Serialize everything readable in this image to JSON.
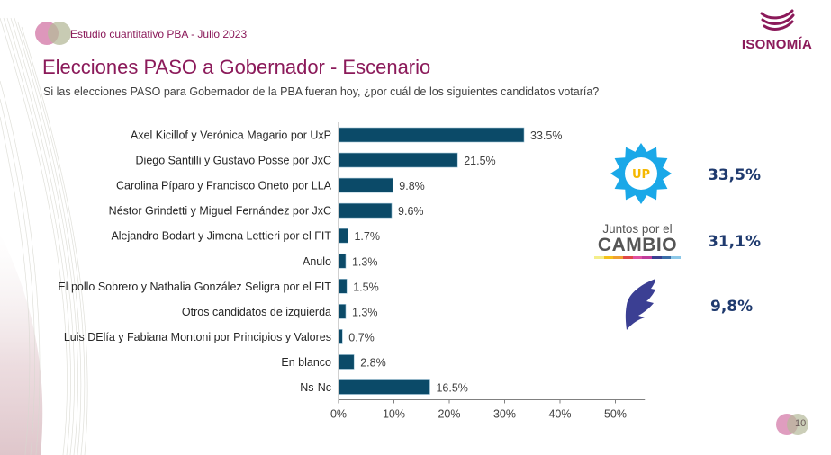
{
  "header": {
    "study": "Estudio cuantitativo PBA - Julio 2023",
    "brand": "ISONOMÍA",
    "title": "Elecciones PASO a Gobernador - Escenario",
    "question": "Si las elecciones PASO para Gobernador de la PBA fueran hoy, ¿por cuál de los siguientes candidatos votaría?"
  },
  "colors": {
    "brand": "#8b1a5a",
    "bar": "#0b4a68",
    "pct": "#1f3a6e",
    "up_star": "#1aa8e8",
    "up_text": "#f5b800",
    "lla": "#3b3f93"
  },
  "chart_data": {
    "type": "bar",
    "orientation": "horizontal",
    "categories": [
      "Axel Kicillof y Verónica Magario por UxP",
      "Diego Santilli y Gustavo Posse por JxC",
      "Carolina Píparo y Francisco Oneto por LLA",
      "Néstor Grindetti y Miguel Fernández por JxC",
      "Alejandro Bodart y Jimena Lettieri por el FIT",
      "Anulo",
      "El pollo Sobrero y Nathalia González Seligra por el FIT",
      "Otros candidatos de izquierda",
      "Luis DElía y Fabiana Montoni por Principios y Valores",
      "En blanco",
      "Ns-Nc"
    ],
    "values": [
      33.5,
      21.5,
      9.8,
      9.6,
      1.7,
      1.3,
      1.5,
      1.3,
      0.7,
      2.8,
      16.5
    ],
    "value_labels": [
      "33.5%",
      "21.5%",
      "9.8%",
      "9.6%",
      "1.7%",
      "1.3%",
      "1.5%",
      "1.3%",
      "0.7%",
      "2.8%",
      "16.5%"
    ],
    "xlim": [
      0,
      55
    ],
    "xticks": [
      0,
      10,
      20,
      30,
      40,
      50
    ],
    "xtick_labels": [
      "0%",
      "10%",
      "20%",
      "30%",
      "40%",
      "50%"
    ],
    "grid": false,
    "legend": "none"
  },
  "summary": [
    {
      "party": "UP",
      "value": "33,5%"
    },
    {
      "party": "Juntos por el CAMBIO",
      "line1": "Juntos por el",
      "line2": "CAMBIO",
      "value": "31,1%"
    },
    {
      "party": "LLA",
      "value": "9,8%"
    }
  ],
  "page": "10"
}
